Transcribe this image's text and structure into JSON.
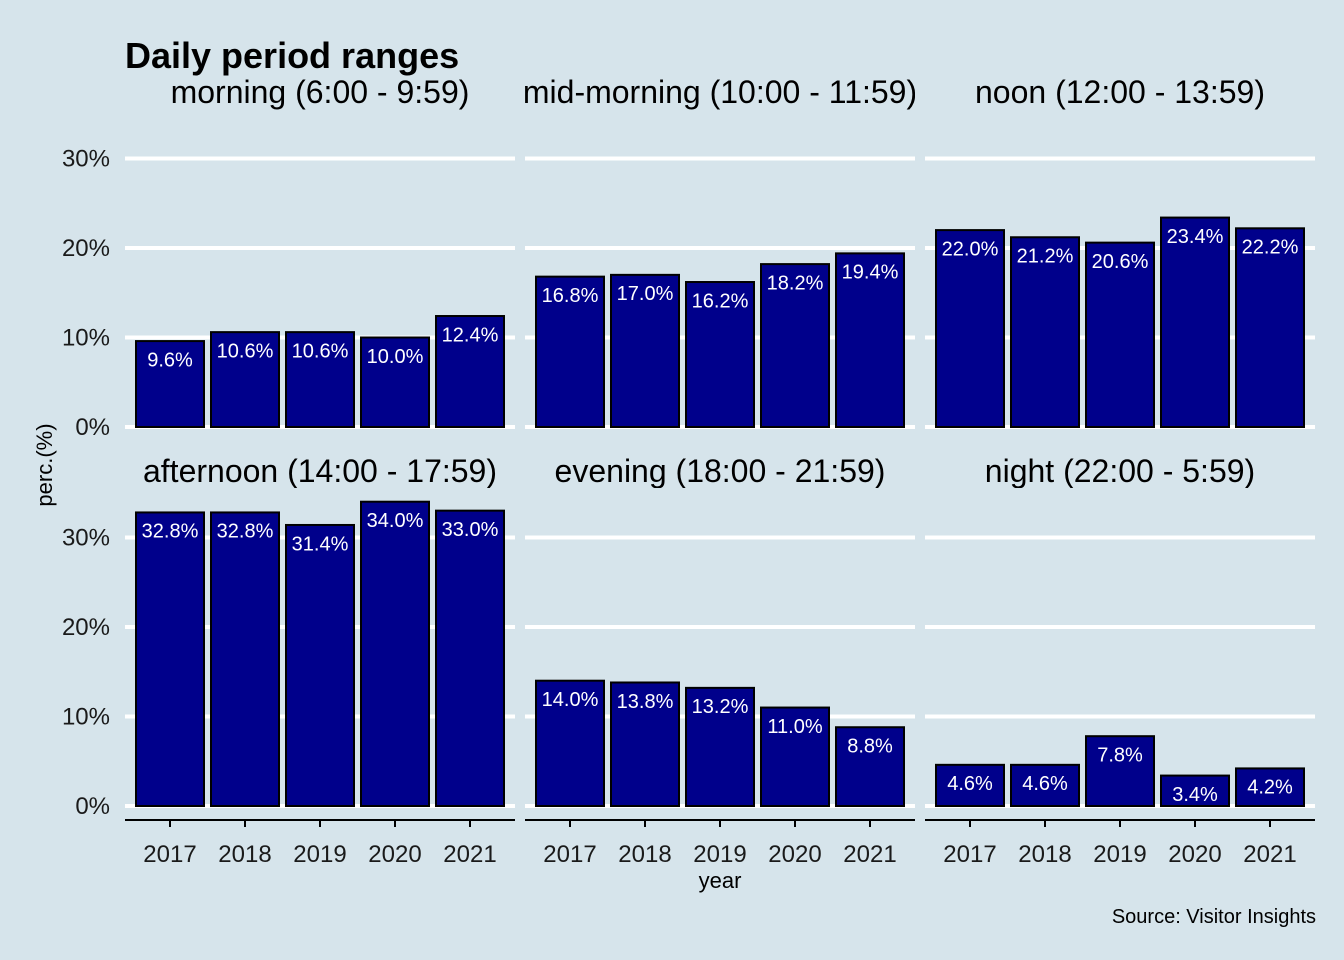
{
  "chart_data": {
    "type": "bar",
    "title": "Daily period ranges",
    "xlabel": "year",
    "ylabel": "perc.(%)",
    "caption": "Source: Visitor Insights",
    "ylim": [
      0,
      30
    ],
    "yticks": [
      "0%",
      "10%",
      "20%",
      "30%"
    ],
    "categories": [
      "2017",
      "2018",
      "2019",
      "2020",
      "2021"
    ],
    "bar_color": "#00008b",
    "background_color": "#d6e4eb",
    "grid": true,
    "panels": [
      {
        "label": "morning (6:00 - 9:59)",
        "values": [
          9.6,
          10.6,
          10.6,
          10.0,
          12.4
        ],
        "labels": [
          "9.6%",
          "10.6%",
          "10.6%",
          "10.0%",
          "12.4%"
        ]
      },
      {
        "label": "mid-morning (10:00 - 11:59)",
        "values": [
          16.8,
          17.0,
          16.2,
          18.2,
          19.4
        ],
        "labels": [
          "16.8%",
          "17.0%",
          "16.2%",
          "18.2%",
          "19.4%"
        ]
      },
      {
        "label": "noon (12:00 - 13:59)",
        "values": [
          22.0,
          21.2,
          20.6,
          23.4,
          22.2
        ],
        "labels": [
          "22.0%",
          "21.2%",
          "20.6%",
          "23.4%",
          "22.2%"
        ]
      },
      {
        "label": "afternoon (14:00 - 17:59)",
        "values": [
          32.8,
          32.8,
          31.4,
          34.0,
          33.0
        ],
        "labels": [
          "32.8%",
          "32.8%",
          "31.4%",
          "34.0%",
          "33.0%"
        ]
      },
      {
        "label": "evening (18:00 - 21:59)",
        "values": [
          14.0,
          13.8,
          13.2,
          11.0,
          8.8
        ],
        "labels": [
          "14.0%",
          "13.8%",
          "13.2%",
          "11.0%",
          "8.8%"
        ]
      },
      {
        "label": "night (22:00 - 5:59)",
        "values": [
          4.6,
          4.6,
          7.8,
          3.4,
          4.2
        ],
        "labels": [
          "4.6%",
          "4.6%",
          "7.8%",
          "3.4%",
          "4.2%"
        ]
      }
    ]
  }
}
